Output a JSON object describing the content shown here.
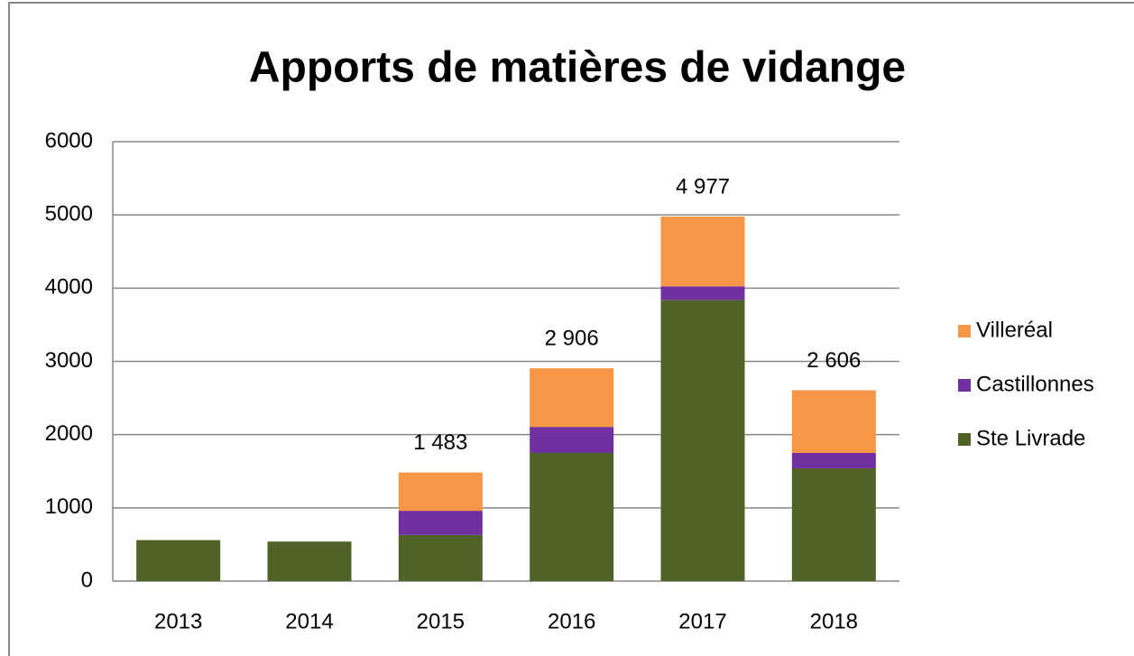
{
  "chart_data": {
    "type": "stacked_bar",
    "title": "Apports de matières de vidange",
    "categories": [
      "2013",
      "2014",
      "2015",
      "2016",
      "2017",
      "2018"
    ],
    "series": [
      {
        "name": "Ste Livrade",
        "color": "#4f6228",
        "values": [
          560,
          540,
          630,
          1750,
          3840,
          1540
        ]
      },
      {
        "name": "Castillonnes",
        "color": "#7030a0",
        "values": [
          0,
          0,
          330,
          355,
          185,
          210
        ]
      },
      {
        "name": "Villeréal",
        "color": "#f79646",
        "values": [
          0,
          0,
          523,
          801,
          952,
          856
        ]
      }
    ],
    "totals": [
      null,
      null,
      1483,
      2906,
      4977,
      2606
    ],
    "total_labels": [
      null,
      null,
      "1 483",
      "2 906",
      "4 977",
      "2 606"
    ],
    "ylim": [
      0,
      6000
    ],
    "yticks": [
      0,
      1000,
      2000,
      3000,
      4000,
      5000,
      6000
    ],
    "grid": true,
    "legend": "right"
  }
}
